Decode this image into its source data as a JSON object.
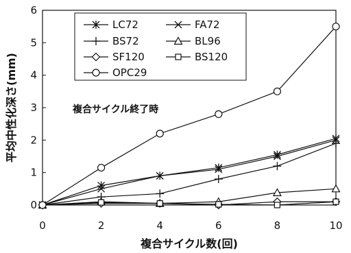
{
  "chart_data": {
    "type": "line",
    "xlabel": "複合サイクル数(回)",
    "ylabel": "平均中性化深さ(mm)",
    "annotation": "複合サイクル終了時",
    "x": [
      0,
      2,
      4,
      6,
      8,
      10
    ],
    "xlim": [
      0,
      10
    ],
    "ylim": [
      0,
      6
    ],
    "xticks": [
      "0",
      "2",
      "4",
      "6",
      "8",
      "10"
    ],
    "yticks": [
      "0",
      "1",
      "2",
      "3",
      "4",
      "5",
      "6"
    ],
    "grid": false,
    "legend_position": "top-left",
    "series": [
      {
        "name": "LC72",
        "marker": "asterisk",
        "values": [
          0,
          0.6,
          0.9,
          1.15,
          1.55,
          2.05
        ]
      },
      {
        "name": "FA72",
        "marker": "x",
        "values": [
          0,
          0.5,
          0.9,
          1.1,
          1.5,
          2.0
        ]
      },
      {
        "name": "BS72",
        "marker": "plus",
        "values": [
          0,
          0.25,
          0.35,
          0.8,
          1.2,
          1.9
        ]
      },
      {
        "name": "BL96",
        "marker": "triangle",
        "values": [
          0,
          0.1,
          0.05,
          0.1,
          0.38,
          0.5
        ]
      },
      {
        "name": "SF120",
        "marker": "diamond",
        "values": [
          0,
          0.05,
          0.05,
          0.0,
          0.1,
          0.1
        ]
      },
      {
        "name": "BS120",
        "marker": "square",
        "values": [
          0,
          0.08,
          0.05,
          0.02,
          0.0,
          0.1
        ]
      },
      {
        "name": "OPC29",
        "marker": "circle",
        "values": [
          0,
          1.15,
          2.2,
          2.8,
          3.5,
          5.5
        ]
      }
    ]
  }
}
